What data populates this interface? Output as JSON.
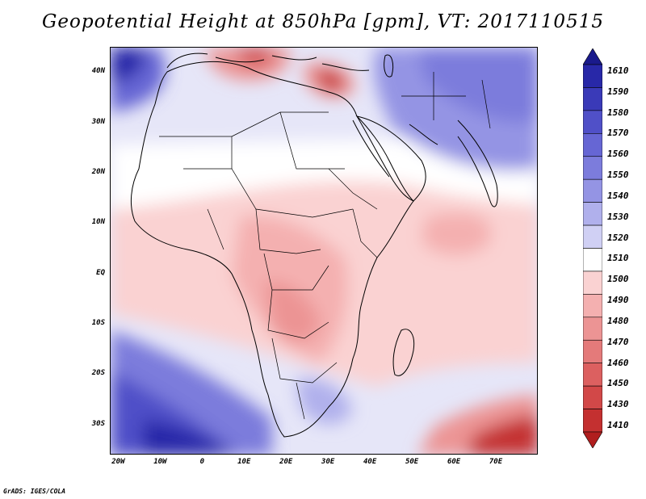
{
  "title": "Geopotential Height at 850hPa [gpm], VT: 2017110515",
  "credit": "GrADS: IGES/COLA",
  "axes": {
    "lat_labels": [
      "40N",
      "30N",
      "20N",
      "10N",
      "EQ",
      "10S",
      "20S",
      "30S"
    ],
    "lat_values": [
      40,
      30,
      20,
      10,
      0,
      -10,
      -20,
      -30
    ],
    "lon_labels": [
      "20W",
      "10W",
      "0",
      "10E",
      "20E",
      "30E",
      "40E",
      "50E",
      "60E",
      "70E"
    ],
    "lon_values": [
      -20,
      -10,
      0,
      10,
      20,
      30,
      40,
      50,
      60,
      70
    ],
    "lat_range": [
      -36,
      45
    ],
    "lon_range": [
      -22,
      80
    ]
  },
  "colorbar": {
    "levels": [
      "1610",
      "1590",
      "1580",
      "1570",
      "1560",
      "1550",
      "1540",
      "1530",
      "1520",
      "1510",
      "1500",
      "1490",
      "1480",
      "1470",
      "1460",
      "1450",
      "1430",
      "1410"
    ],
    "colors": [
      "#1a1a8c",
      "#2828a8",
      "#3a3ab8",
      "#5050c8",
      "#6666d4",
      "#7c7cdc",
      "#9494e4",
      "#b0b0ec",
      "#d0d0f4",
      "#ffffff",
      "#fad2d2",
      "#f4b0b0",
      "#ec9494",
      "#e47a7a",
      "#dc6060",
      "#d24848",
      "#c43030",
      "#b01e1e"
    ]
  },
  "map": {
    "variable": "Geopotential Height",
    "level": "850hPa",
    "units": "gpm",
    "valid_time": "2017110515"
  }
}
